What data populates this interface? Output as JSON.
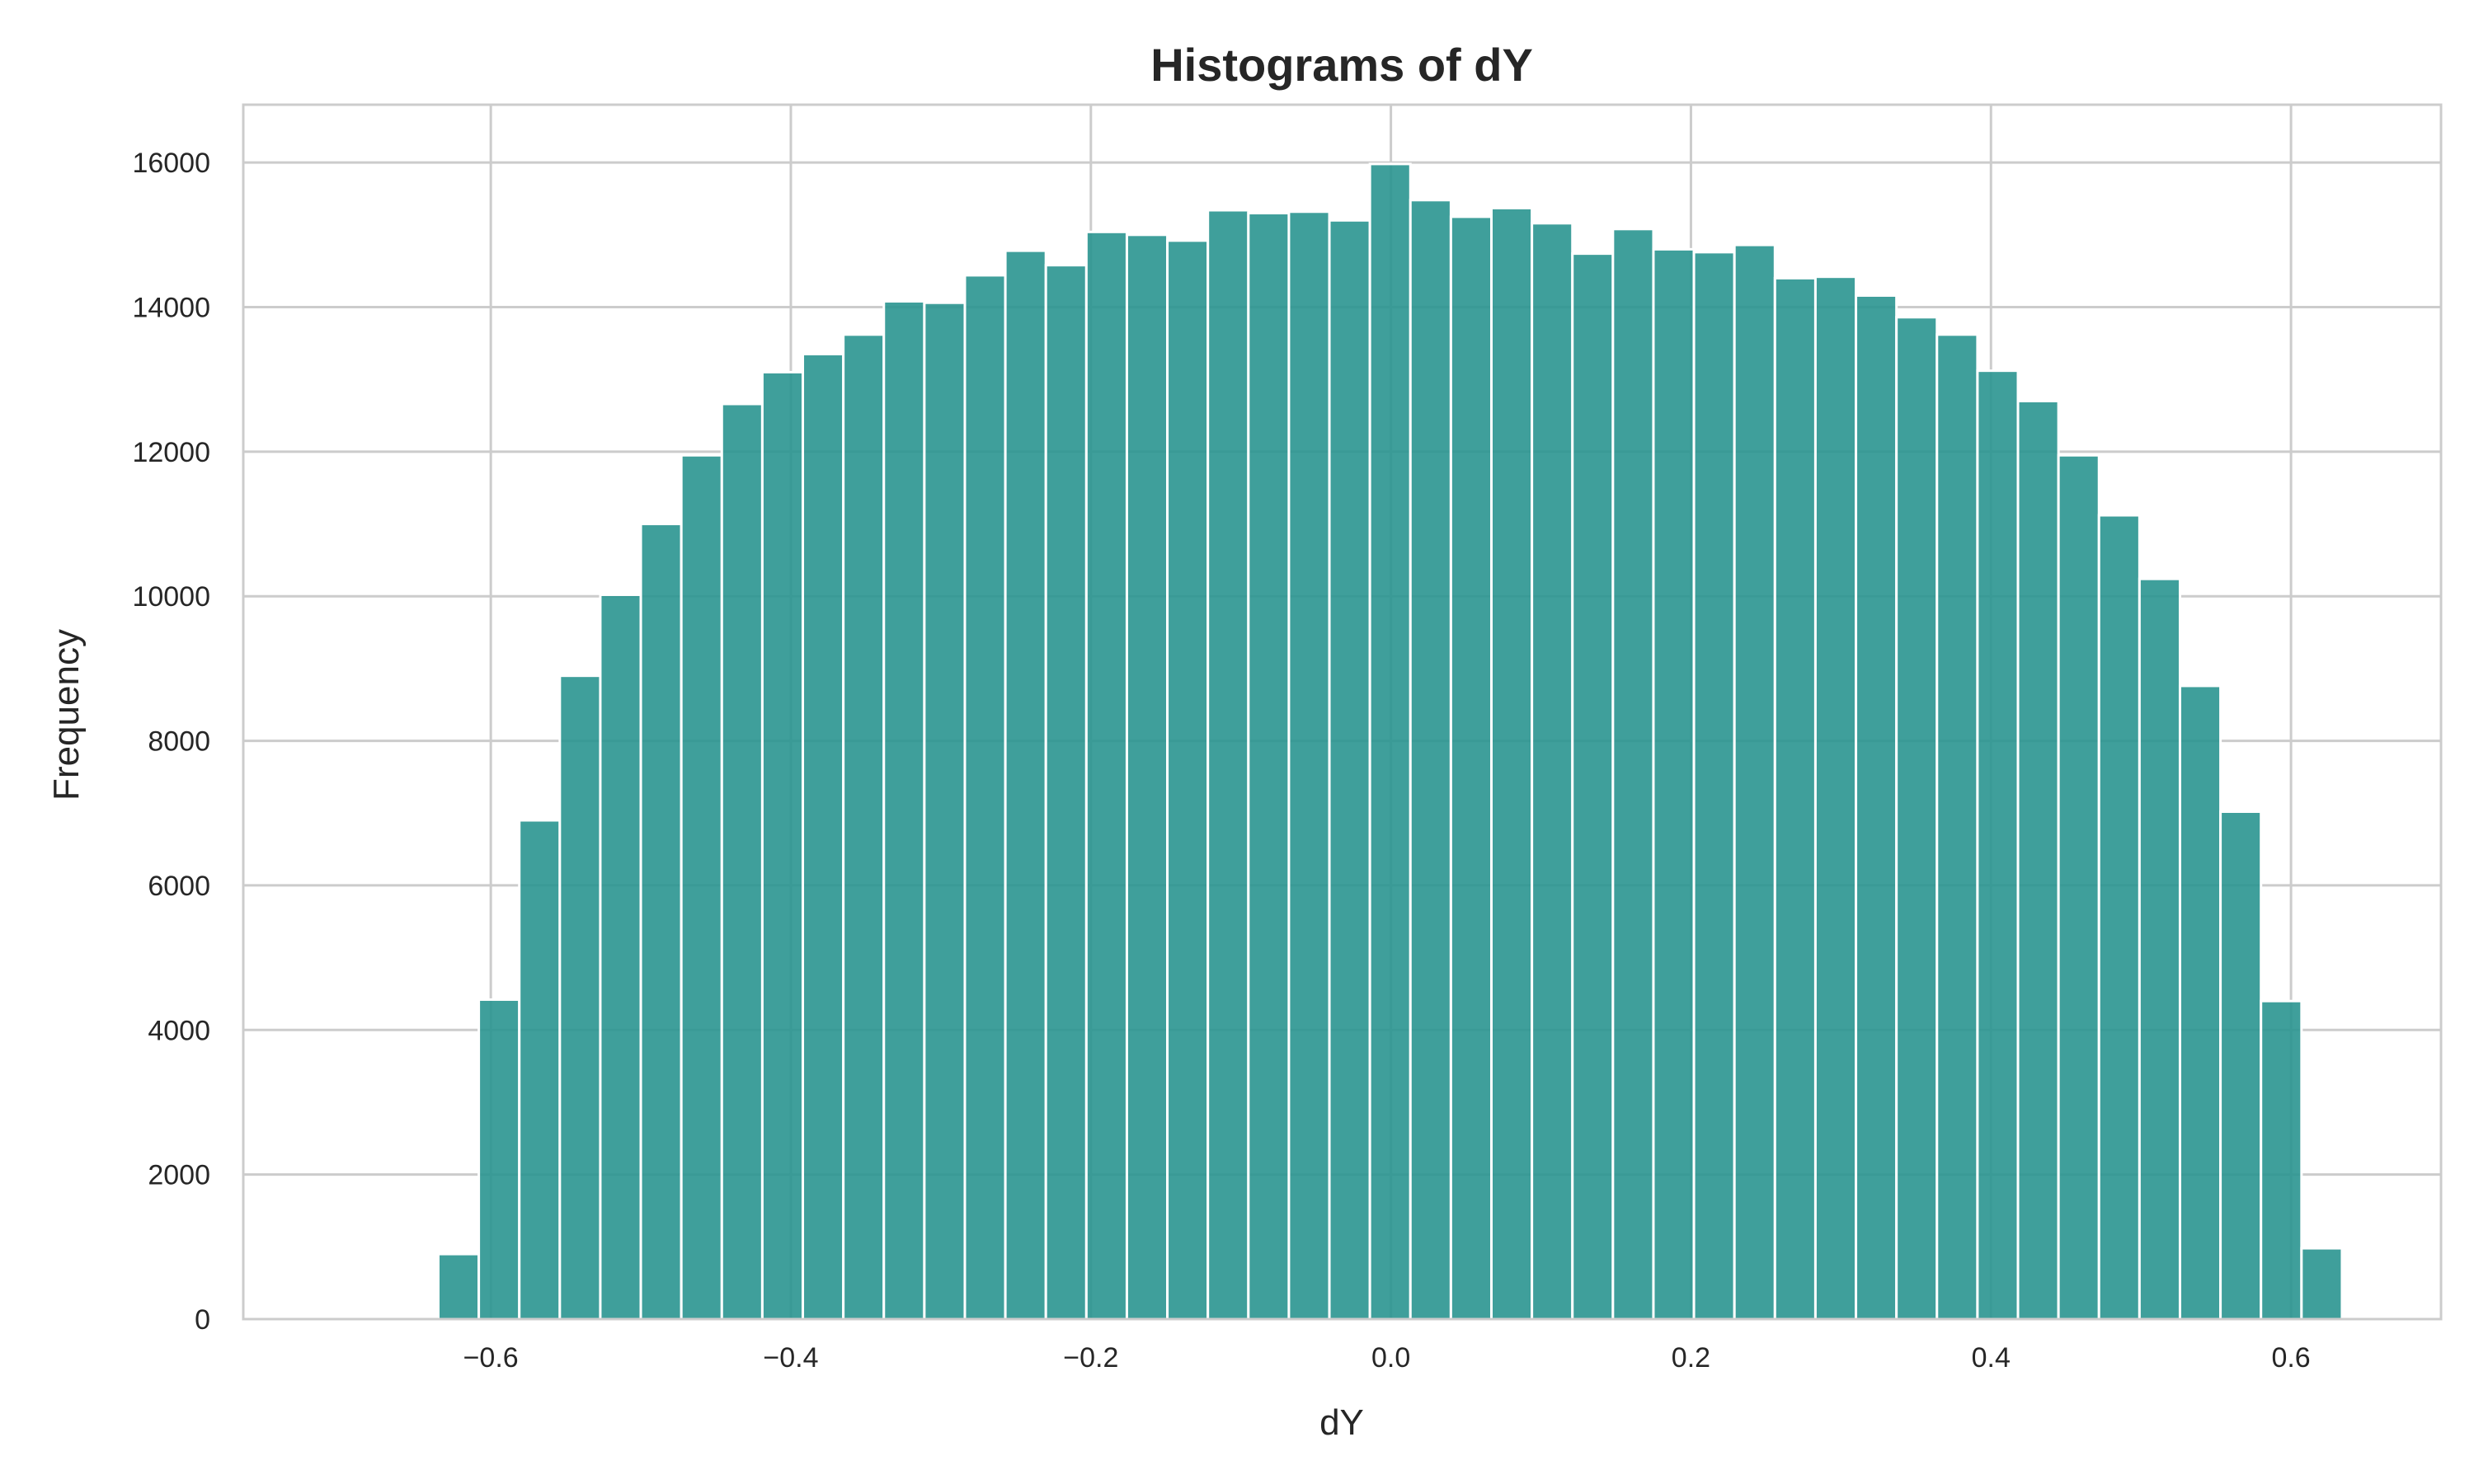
{
  "chart_data": {
    "type": "bar",
    "title": "Histograms of dY",
    "xlabel": "dY",
    "ylabel": "Frequency",
    "xlim": [
      -0.765,
      0.7
    ],
    "ylim": [
      0,
      16800
    ],
    "xticks": [
      -0.6,
      -0.4,
      -0.2,
      0.0,
      0.2,
      0.4,
      0.6
    ],
    "xtick_labels": [
      "−0.6",
      "−0.4",
      "−0.2",
      "0.0",
      "0.2",
      "0.4",
      "0.6"
    ],
    "yticks": [
      0,
      2000,
      4000,
      6000,
      8000,
      10000,
      12000,
      14000,
      16000
    ],
    "ytick_labels": [
      "0",
      "2000",
      "4000",
      "6000",
      "8000",
      "10000",
      "12000",
      "14000",
      "16000"
    ],
    "grid": true,
    "bar_color": "#2a9590",
    "bin_start": -0.635,
    "bin_width": 0.027,
    "values": [
      900,
      4420,
      6900,
      8900,
      10020,
      11000,
      11950,
      12660,
      13100,
      13350,
      13620,
      14080,
      14060,
      14440,
      14780,
      14580,
      15040,
      15000,
      14920,
      15340,
      15300,
      15320,
      15200,
      15980,
      15480,
      15250,
      15370,
      15160,
      14740,
      15080,
      14800,
      14760,
      14860,
      14400,
      14420,
      14160,
      13860,
      13620,
      13120,
      12700,
      11950,
      11120,
      10240,
      8760,
      7020,
      4400,
      980
    ]
  }
}
